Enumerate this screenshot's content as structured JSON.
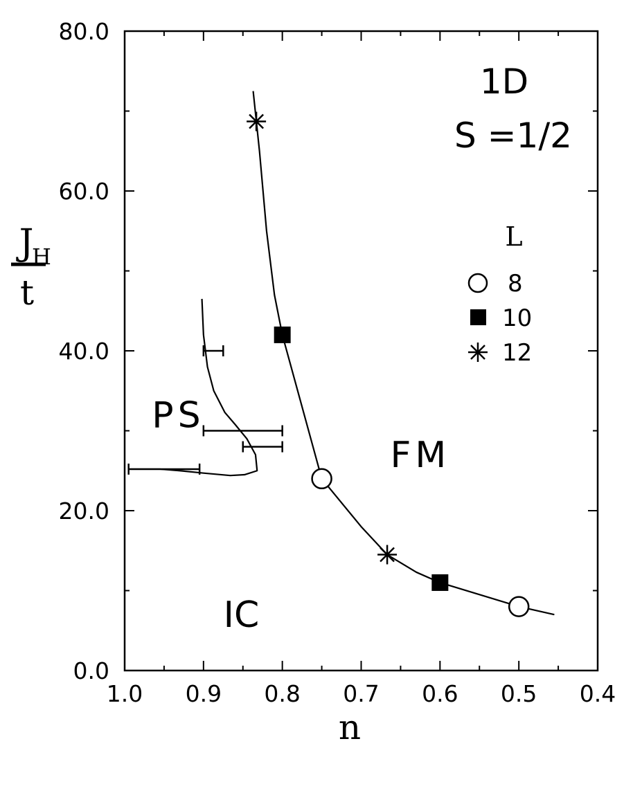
{
  "chart_data": {
    "type": "line",
    "xlabel": "n",
    "ylabel": {
      "main": "J",
      "sub": "H",
      "denominator": "t"
    },
    "xlim": [
      1.0,
      0.4
    ],
    "ylim": [
      0.0,
      80.0
    ],
    "x_ticks": [
      "1.0",
      "0.9",
      "0.8",
      "0.7",
      "0.6",
      "0.5",
      "0.4"
    ],
    "x_tick_values": [
      1.0,
      0.9,
      0.8,
      0.7,
      0.6,
      0.5,
      0.4
    ],
    "y_ticks": [
      "0.0",
      "20.0",
      "40.0",
      "60.0",
      "80.0"
    ],
    "y_tick_values": [
      0,
      20,
      40,
      60,
      80
    ],
    "y_minor_values": [
      10,
      30,
      50,
      70
    ],
    "annotations": {
      "line1": "1D",
      "line2": "S =1/2"
    },
    "region_labels": [
      {
        "text": "PS",
        "x": 0.932,
        "y": 32
      },
      {
        "text": "FM",
        "x": 0.625,
        "y": 27
      },
      {
        "text": "IC",
        "x": 0.852,
        "y": 7
      }
    ],
    "legend": {
      "title": "L",
      "placement": "right",
      "entries": [
        {
          "marker": "open-circle",
          "label": "8"
        },
        {
          "marker": "filled-square",
          "label": "10"
        },
        {
          "marker": "asterisk",
          "label": "12"
        }
      ]
    },
    "series": [
      {
        "role": "FM boundary",
        "line": [
          [
            0.837,
            72.5
          ],
          [
            0.829,
            65
          ],
          [
            0.82,
            55
          ],
          [
            0.81,
            47
          ],
          [
            0.8,
            42
          ],
          [
            0.775,
            33
          ],
          [
            0.75,
            24
          ],
          [
            0.7,
            18
          ],
          [
            0.667,
            14.5
          ],
          [
            0.63,
            12.3
          ],
          [
            0.6,
            11
          ],
          [
            0.5,
            8
          ],
          [
            0.455,
            7
          ]
        ],
        "points": [
          {
            "x": 0.833,
            "y": 68.7,
            "marker": "asterisk"
          },
          {
            "x": 0.8,
            "y": 42.0,
            "marker": "filled-square"
          },
          {
            "x": 0.75,
            "y": 24.0,
            "marker": "open-circle"
          },
          {
            "x": 0.667,
            "y": 14.5,
            "marker": "asterisk"
          },
          {
            "x": 0.6,
            "y": 11.0,
            "marker": "filled-square"
          },
          {
            "x": 0.5,
            "y": 8.0,
            "marker": "open-circle"
          }
        ]
      },
      {
        "role": "PS boundary",
        "line": [
          [
            0.902,
            46.5
          ],
          [
            0.9,
            42
          ],
          [
            0.895,
            38
          ],
          [
            0.887,
            35
          ],
          [
            0.873,
            32.3
          ],
          [
            0.86,
            30.8
          ],
          [
            0.845,
            29
          ],
          [
            0.834,
            27
          ],
          [
            0.832,
            25
          ],
          [
            0.848,
            24.5
          ],
          [
            0.866,
            24.4
          ],
          [
            0.9,
            24.7
          ],
          [
            0.93,
            25.0
          ],
          [
            0.955,
            25.2
          ],
          [
            0.995,
            25.2
          ]
        ],
        "error_bars": [
          {
            "y": 40.0,
            "x_low": 0.9,
            "x_high": 0.875
          },
          {
            "y": 30.0,
            "x_low": 0.9,
            "x_high": 0.8
          },
          {
            "y": 28.0,
            "x_low": 0.85,
            "x_high": 0.8
          },
          {
            "y": 25.2,
            "x_low": 0.995,
            "x_high": 0.905
          }
        ]
      }
    ]
  }
}
